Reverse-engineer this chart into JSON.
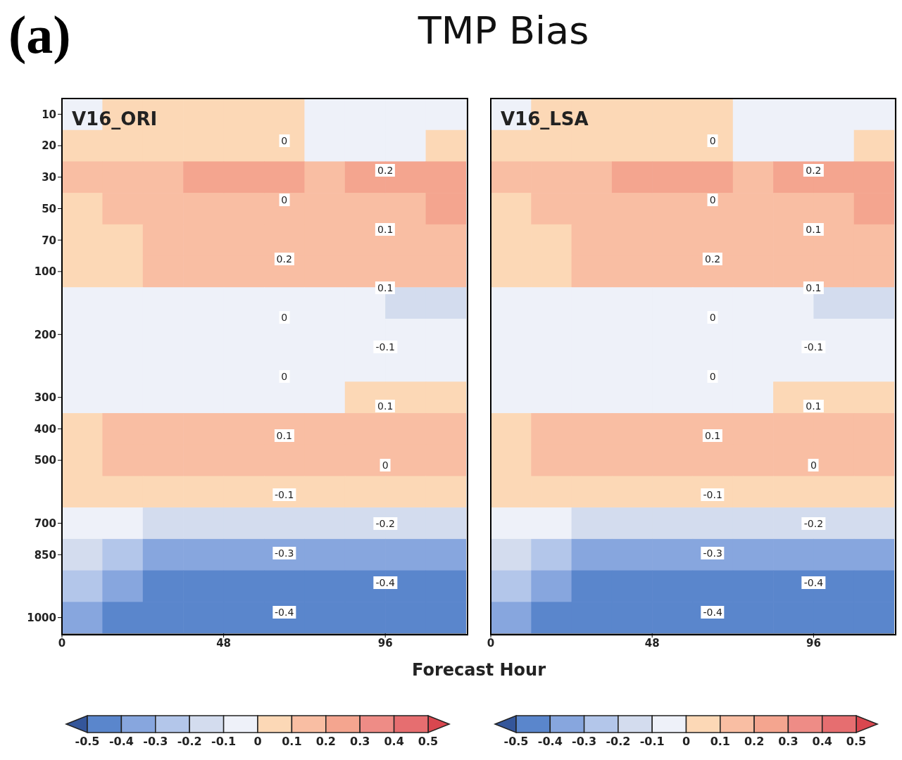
{
  "chart_data": [
    {
      "type": "heatmap",
      "title": "TMP Bias",
      "subtitle": "V16_ORI",
      "xlabel": "Forecast Hour",
      "x": [
        6,
        18,
        30,
        42,
        54,
        66,
        78,
        90,
        102,
        114
      ],
      "xlim": [
        0,
        120
      ],
      "xticks": [
        0,
        48,
        96
      ],
      "grid": "x",
      "y_categories": [
        "10",
        "20",
        "30",
        "50",
        "70",
        "100",
        null,
        "200",
        null,
        "300",
        "400",
        "500",
        null,
        "700",
        "850",
        null,
        "1000"
      ],
      "cells": [
        [
          -0.05,
          0.05,
          0.05,
          0.05,
          0.05,
          0.05,
          -0.05,
          -0.05,
          -0.05,
          -0.05
        ],
        [
          0.05,
          0.05,
          0.05,
          0.05,
          0.05,
          0.05,
          -0.05,
          -0.05,
          -0.05,
          0.05
        ],
        [
          0.15,
          0.15,
          0.15,
          0.25,
          0.25,
          0.25,
          0.15,
          0.25,
          0.25,
          0.25
        ],
        [
          0.05,
          0.15,
          0.15,
          0.15,
          0.15,
          0.15,
          0.15,
          0.15,
          0.15,
          0.25
        ],
        [
          0.05,
          0.05,
          0.15,
          0.15,
          0.15,
          0.15,
          0.15,
          0.15,
          0.15,
          0.15
        ],
        [
          0.05,
          0.05,
          0.15,
          0.15,
          0.15,
          0.15,
          0.15,
          0.15,
          0.15,
          0.15
        ],
        [
          -0.05,
          -0.05,
          -0.05,
          -0.05,
          -0.05,
          -0.05,
          -0.05,
          -0.05,
          -0.15,
          -0.15
        ],
        [
          -0.05,
          -0.05,
          -0.05,
          -0.05,
          -0.05,
          -0.05,
          -0.05,
          -0.05,
          -0.05,
          -0.05
        ],
        [
          -0.05,
          -0.05,
          -0.05,
          -0.05,
          -0.05,
          -0.05,
          -0.05,
          -0.05,
          -0.05,
          -0.05
        ],
        [
          -0.05,
          -0.05,
          -0.05,
          -0.05,
          -0.05,
          -0.05,
          -0.05,
          0.05,
          0.05,
          0.05
        ],
        [
          0.05,
          0.15,
          0.15,
          0.15,
          0.15,
          0.15,
          0.15,
          0.15,
          0.15,
          0.15
        ],
        [
          0.05,
          0.15,
          0.15,
          0.15,
          0.15,
          0.15,
          0.15,
          0.15,
          0.15,
          0.15
        ],
        [
          0.05,
          0.05,
          0.05,
          0.05,
          0.05,
          0.05,
          0.05,
          0.05,
          0.05,
          0.05
        ],
        [
          -0.05,
          -0.05,
          -0.15,
          -0.15,
          -0.15,
          -0.15,
          -0.15,
          -0.15,
          -0.15,
          -0.15
        ],
        [
          -0.15,
          -0.25,
          -0.35,
          -0.35,
          -0.35,
          -0.35,
          -0.35,
          -0.35,
          -0.35,
          -0.35
        ],
        [
          -0.25,
          -0.35,
          -0.45,
          -0.45,
          -0.45,
          -0.45,
          -0.45,
          -0.45,
          -0.45,
          -0.45
        ],
        [
          -0.35,
          -0.45,
          -0.45,
          -0.45,
          -0.45,
          -0.45,
          -0.45,
          -0.45,
          -0.45,
          -0.45
        ]
      ],
      "clim": [
        -0.5,
        0.5
      ],
      "cticks": [
        -0.5,
        -0.4,
        -0.3,
        -0.2,
        -0.1,
        0,
        0.1,
        0.2,
        0.3,
        0.4,
        0.5
      ],
      "colors": [
        "#34569a",
        "#5a86cc",
        "#87a6de",
        "#b3c6ea",
        "#d3dcee",
        "#eef1f9",
        "#fcd8b6",
        "#f9bea3",
        "#f4a58f",
        "#ee8c86",
        "#e66e70",
        "#d9474f"
      ],
      "annotations": [
        "(a)",
        "0",
        "0.2",
        "0",
        "0.1",
        "0.2",
        "0.1",
        "0",
        "-0.1",
        "0",
        "0.1",
        "0.1",
        "0",
        "-0.1",
        "-0.2",
        "-0.3",
        "-0.4",
        "-0.4"
      ]
    },
    {
      "type": "heatmap",
      "subtitle": "V16_LSA",
      "x": [
        6,
        18,
        30,
        42,
        54,
        66,
        78,
        90,
        102,
        114
      ],
      "xlim": [
        0,
        120
      ],
      "xticks": [
        0,
        48,
        96
      ],
      "grid": "x",
      "tick_labels": "x",
      "y_categories": [
        "10",
        "20",
        "30",
        "50",
        "70",
        "100",
        null,
        "200",
        null,
        "300",
        "400",
        "500",
        null,
        "700",
        "850",
        null,
        "1000"
      ],
      "cells": [
        [
          -0.05,
          0.05,
          0.05,
          0.05,
          0.05,
          0.05,
          -0.05,
          -0.05,
          -0.05,
          -0.05
        ],
        [
          0.05,
          0.05,
          0.05,
          0.05,
          0.05,
          0.05,
          -0.05,
          -0.05,
          -0.05,
          0.05
        ],
        [
          0.15,
          0.15,
          0.15,
          0.25,
          0.25,
          0.25,
          0.15,
          0.25,
          0.25,
          0.25
        ],
        [
          0.05,
          0.15,
          0.15,
          0.15,
          0.15,
          0.15,
          0.15,
          0.15,
          0.15,
          0.25
        ],
        [
          0.05,
          0.05,
          0.15,
          0.15,
          0.15,
          0.15,
          0.15,
          0.15,
          0.15,
          0.15
        ],
        [
          0.05,
          0.05,
          0.15,
          0.15,
          0.15,
          0.15,
          0.15,
          0.15,
          0.15,
          0.15
        ],
        [
          -0.05,
          -0.05,
          -0.05,
          -0.05,
          -0.05,
          -0.05,
          -0.05,
          -0.05,
          -0.15,
          -0.15
        ],
        [
          -0.05,
          -0.05,
          -0.05,
          -0.05,
          -0.05,
          -0.05,
          -0.05,
          -0.05,
          -0.05,
          -0.05
        ],
        [
          -0.05,
          -0.05,
          -0.05,
          -0.05,
          -0.05,
          -0.05,
          -0.05,
          -0.05,
          -0.05,
          -0.05
        ],
        [
          -0.05,
          -0.05,
          -0.05,
          -0.05,
          -0.05,
          -0.05,
          -0.05,
          0.05,
          0.05,
          0.05
        ],
        [
          0.05,
          0.15,
          0.15,
          0.15,
          0.15,
          0.15,
          0.15,
          0.15,
          0.15,
          0.15
        ],
        [
          0.05,
          0.15,
          0.15,
          0.15,
          0.15,
          0.15,
          0.15,
          0.15,
          0.15,
          0.15
        ],
        [
          0.05,
          0.05,
          0.05,
          0.05,
          0.05,
          0.05,
          0.05,
          0.05,
          0.05,
          0.05
        ],
        [
          -0.05,
          -0.05,
          -0.15,
          -0.15,
          -0.15,
          -0.15,
          -0.15,
          -0.15,
          -0.15,
          -0.15
        ],
        [
          -0.15,
          -0.25,
          -0.35,
          -0.35,
          -0.35,
          -0.35,
          -0.35,
          -0.35,
          -0.35,
          -0.35
        ],
        [
          -0.25,
          -0.35,
          -0.45,
          -0.45,
          -0.45,
          -0.45,
          -0.45,
          -0.45,
          -0.45,
          -0.45
        ],
        [
          -0.35,
          -0.45,
          -0.45,
          -0.45,
          -0.45,
          -0.45,
          -0.45,
          -0.45,
          -0.45,
          -0.45
        ]
      ],
      "clim": [
        -0.5,
        0.5
      ],
      "cticks": [
        -0.5,
        -0.4,
        -0.3,
        -0.2,
        -0.1,
        0,
        0.1,
        0.2,
        0.3,
        0.4,
        0.5
      ],
      "colors": [
        "#34569a",
        "#5a86cc",
        "#87a6de",
        "#b3c6ea",
        "#d3dcee",
        "#eef1f9",
        "#fcd8b6",
        "#f9bea3",
        "#f4a58f",
        "#ee8c86",
        "#e66e70",
        "#d9474f"
      ],
      "annotations": [
        "0",
        "0.2",
        "0",
        "0.1",
        "0.2",
        "0.1",
        "0",
        "-0.1",
        "0",
        "0.1",
        "0.1",
        "0",
        "-0.1",
        "-0.2",
        "-0.3",
        "-0.4",
        "-0.4"
      ]
    }
  ]
}
